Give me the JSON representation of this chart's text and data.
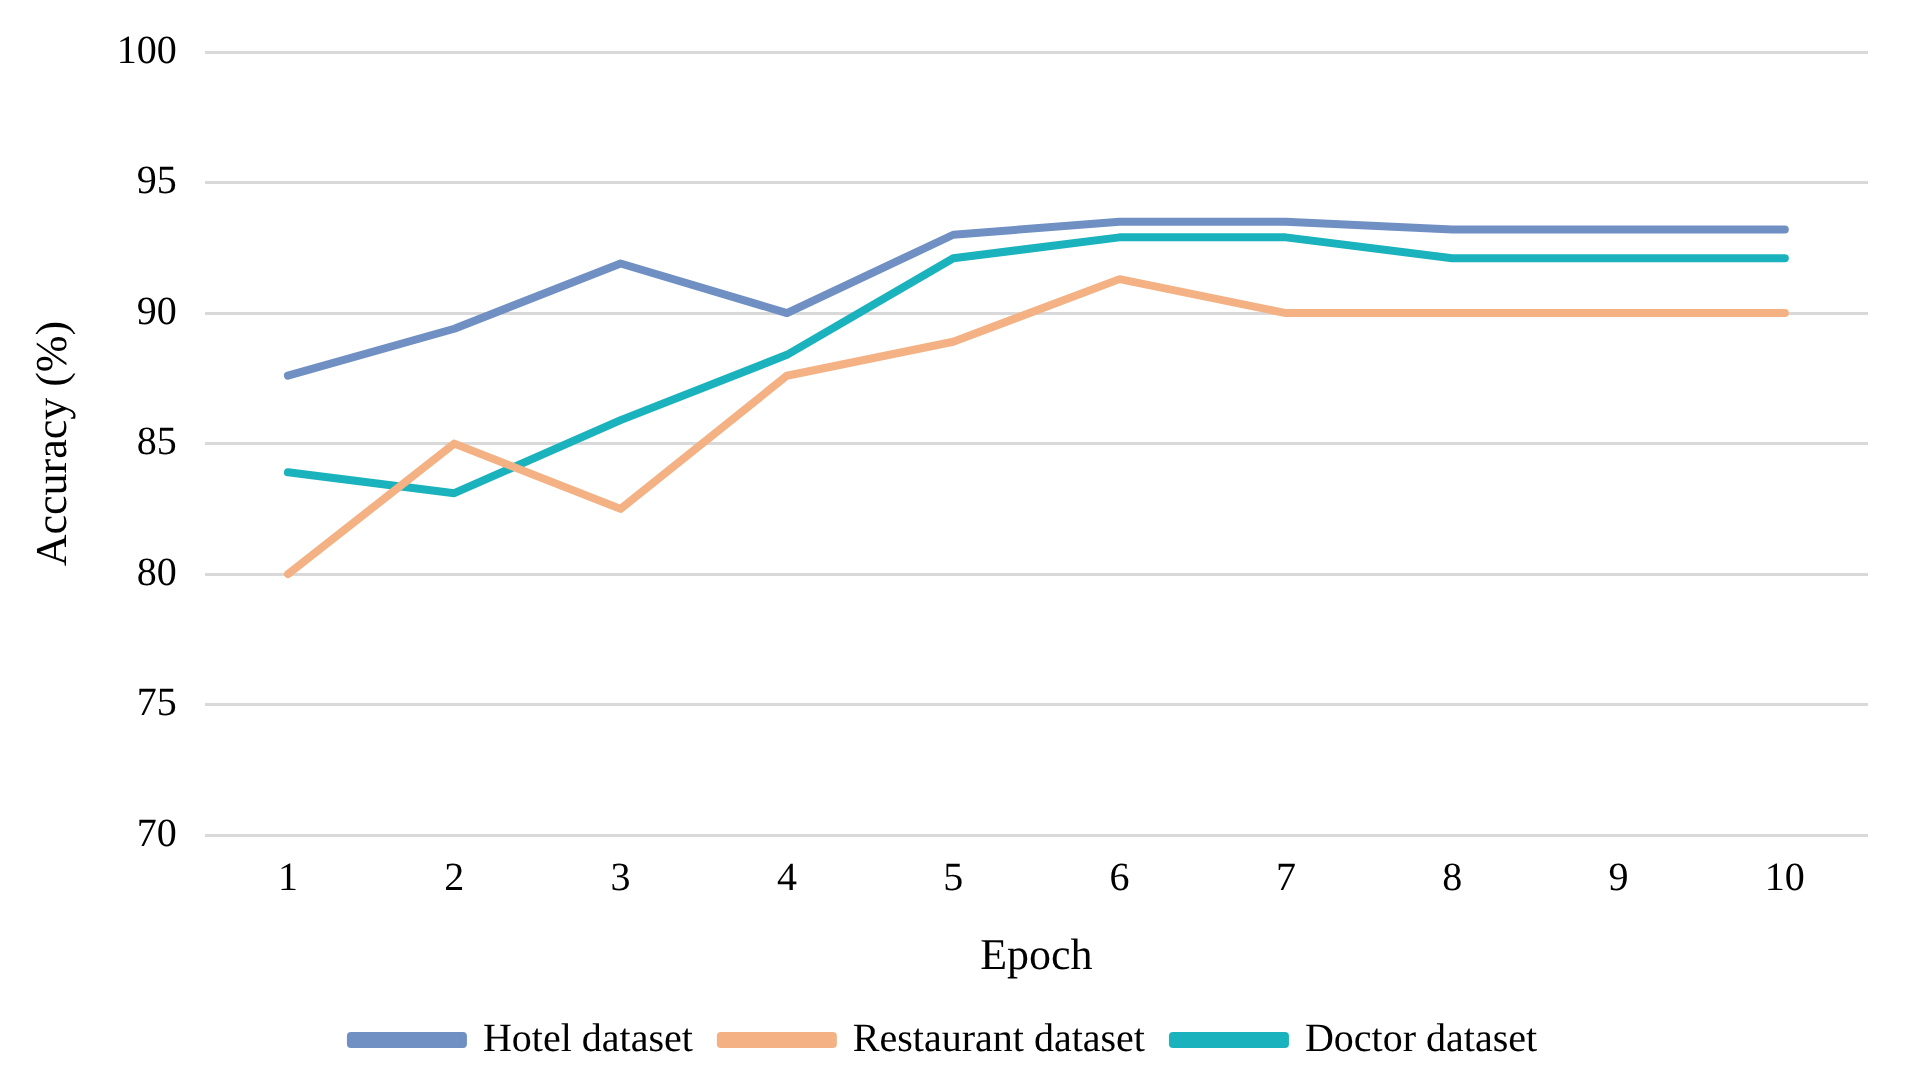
{
  "chart_data": {
    "type": "line",
    "xlabel": "Epoch",
    "ylabel": "Accuracy (%)",
    "categories": [
      "1",
      "2",
      "3",
      "4",
      "5",
      "6",
      "7",
      "8",
      "9",
      "10"
    ],
    "series": [
      {
        "name": "Hotel dataset",
        "color": "#7090c4",
        "values": [
          87.6,
          89.4,
          91.9,
          90,
          93,
          93.5,
          93.5,
          93.2,
          93.2,
          93.2
        ]
      },
      {
        "name": "Restaurant dataset",
        "color": "#f4b183",
        "values": [
          80,
          85,
          82.5,
          87.6,
          88.9,
          91.3,
          90,
          90,
          90,
          90
        ]
      },
      {
        "name": "Doctor dataset",
        "color": "#1ab3bd",
        "values": [
          83.9,
          83.1,
          85.9,
          88.4,
          92.1,
          92.9,
          92.9,
          92.1,
          92.1,
          92.1
        ]
      }
    ],
    "ylim": [
      70,
      100
    ],
    "yticks": [
      70,
      75,
      80,
      85,
      90,
      95,
      100
    ],
    "grid": "y",
    "legend": "bottom",
    "marker": "none",
    "line_style": "solid"
  }
}
